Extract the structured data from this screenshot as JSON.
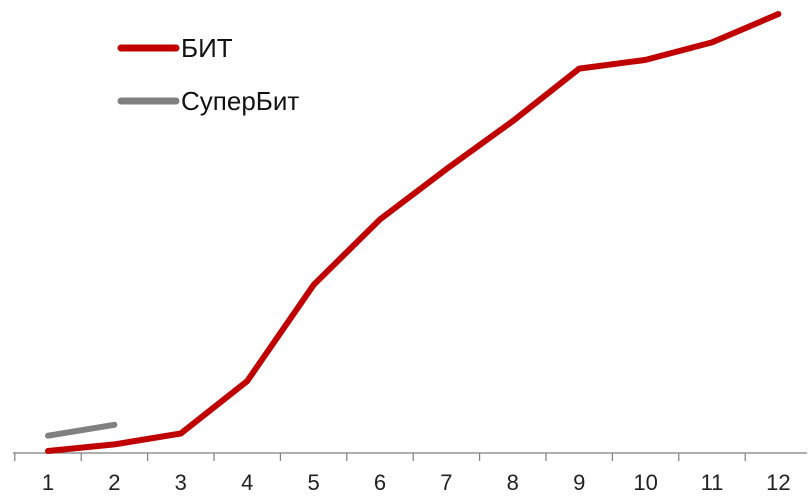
{
  "chart_data": {
    "type": "line",
    "title": "",
    "xlabel": "",
    "ylabel": "",
    "categories": [
      "1",
      "2",
      "3",
      "4",
      "5",
      "6",
      "7",
      "8",
      "9",
      "10",
      "11",
      "12"
    ],
    "series": [
      {
        "name": "БИТ",
        "color": "#c00000",
        "values": [
          0.0,
          1.5,
          4.0,
          16.0,
          38.0,
          53.0,
          64.5,
          75.5,
          87.5,
          89.5,
          93.5,
          100.0
        ]
      },
      {
        "name": "СуперБит",
        "color": "#808080",
        "values": [
          3.5,
          6.0,
          null,
          null,
          null,
          null,
          null,
          null,
          null,
          null,
          null,
          null
        ]
      }
    ],
    "ylim": [
      0,
      100
    ],
    "y_axis_visible": false,
    "grid": false,
    "legend": "top-left"
  }
}
